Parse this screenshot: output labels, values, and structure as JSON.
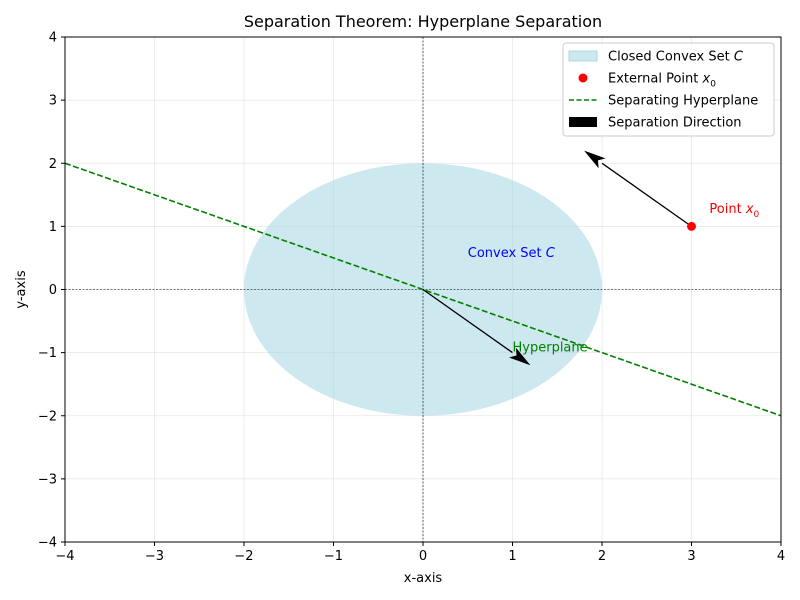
{
  "chart_data": {
    "type": "scatter",
    "title": "Separation Theorem: Hyperplane Separation",
    "xlabel": "x-axis",
    "ylabel": "y-axis",
    "xlim": [
      -4,
      4
    ],
    "ylim": [
      -4,
      4
    ],
    "xticks": [
      -4,
      -3,
      -2,
      -1,
      0,
      1,
      2,
      3,
      4
    ],
    "yticks": [
      -4,
      -3,
      -2,
      -1,
      0,
      1,
      2,
      3,
      4
    ],
    "grid": true,
    "legend_position": "top-right",
    "convex_set": {
      "shape": "ellipse",
      "center": [
        0,
        0
      ],
      "radius_x": 2,
      "radius_y": 2,
      "color": "#add8e6",
      "label": "Closed Convex Set C"
    },
    "external_point": {
      "x": 3,
      "y": 1,
      "color": "#ff0000",
      "label": "External Point x0"
    },
    "hyperplane": {
      "x": [
        -4,
        4
      ],
      "y": [
        2,
        -2
      ],
      "color": "#008000",
      "style": "dashed",
      "label": "Separating Hyperplane"
    },
    "arrows": [
      {
        "from": [
          0,
          0
        ],
        "to": [
          1.2,
          -1.2
        ],
        "color": "#000000"
      },
      {
        "from": [
          3,
          1
        ],
        "to": [
          1.8,
          2.2
        ],
        "color": "#000000"
      }
    ],
    "arrow_legend_label": "Separation Direction",
    "annotations": [
      {
        "text": "Convex Set C",
        "x": 0.5,
        "y": 0.5,
        "color": "#0000ff"
      },
      {
        "text": "Point x0",
        "x": 3.2,
        "y": 1.2,
        "color": "#ff0000"
      },
      {
        "text": "Hyperplane",
        "x": 1.0,
        "y": -1.0,
        "color": "#008000"
      }
    ],
    "legend": [
      {
        "kind": "patch",
        "label": "Closed Convex Set C",
        "color": "#add8e6"
      },
      {
        "kind": "point",
        "label": "External Point x0",
        "color": "#ff0000"
      },
      {
        "kind": "dashed-line",
        "label": "Separating Hyperplane",
        "color": "#008000"
      },
      {
        "kind": "arrow-patch",
        "label": "Separation Direction",
        "color": "#000000"
      }
    ]
  }
}
